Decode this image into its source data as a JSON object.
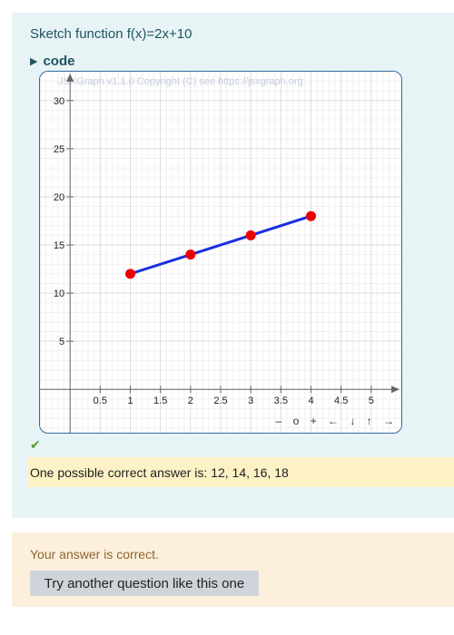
{
  "question": {
    "text": "Sketch function f(x)=2x+10",
    "code_toggle_label": "code"
  },
  "board": {
    "copyright": "JSXGraph v1.1.0 Copyright (C) see https://jsxgraph.org",
    "navigation": [
      "–",
      "o",
      "+",
      "←",
      "↓",
      "↑",
      "→"
    ],
    "line_color": "#1a2ee0",
    "point_color": "#ee0000"
  },
  "chart_data": {
    "type": "line",
    "x": [
      1,
      2,
      3,
      4
    ],
    "y": [
      12,
      14,
      16,
      18
    ],
    "xlim": [
      -0.5,
      5.5
    ],
    "ylim": [
      -4.5,
      33
    ],
    "x_ticks": [
      "0.5",
      "1",
      "1.5",
      "2",
      "2.5",
      "3",
      "3.5",
      "4",
      "4.5",
      "5"
    ],
    "y_ticks": [
      "5",
      "10",
      "15",
      "20",
      "25",
      "30"
    ],
    "grid": true
  },
  "feedback": {
    "check_icon": "check-icon",
    "possible_answer": "One possible correct answer is: 12, 14, 16, 18",
    "result": "Your answer is correct.",
    "retry_label": "Try another question like this one"
  }
}
